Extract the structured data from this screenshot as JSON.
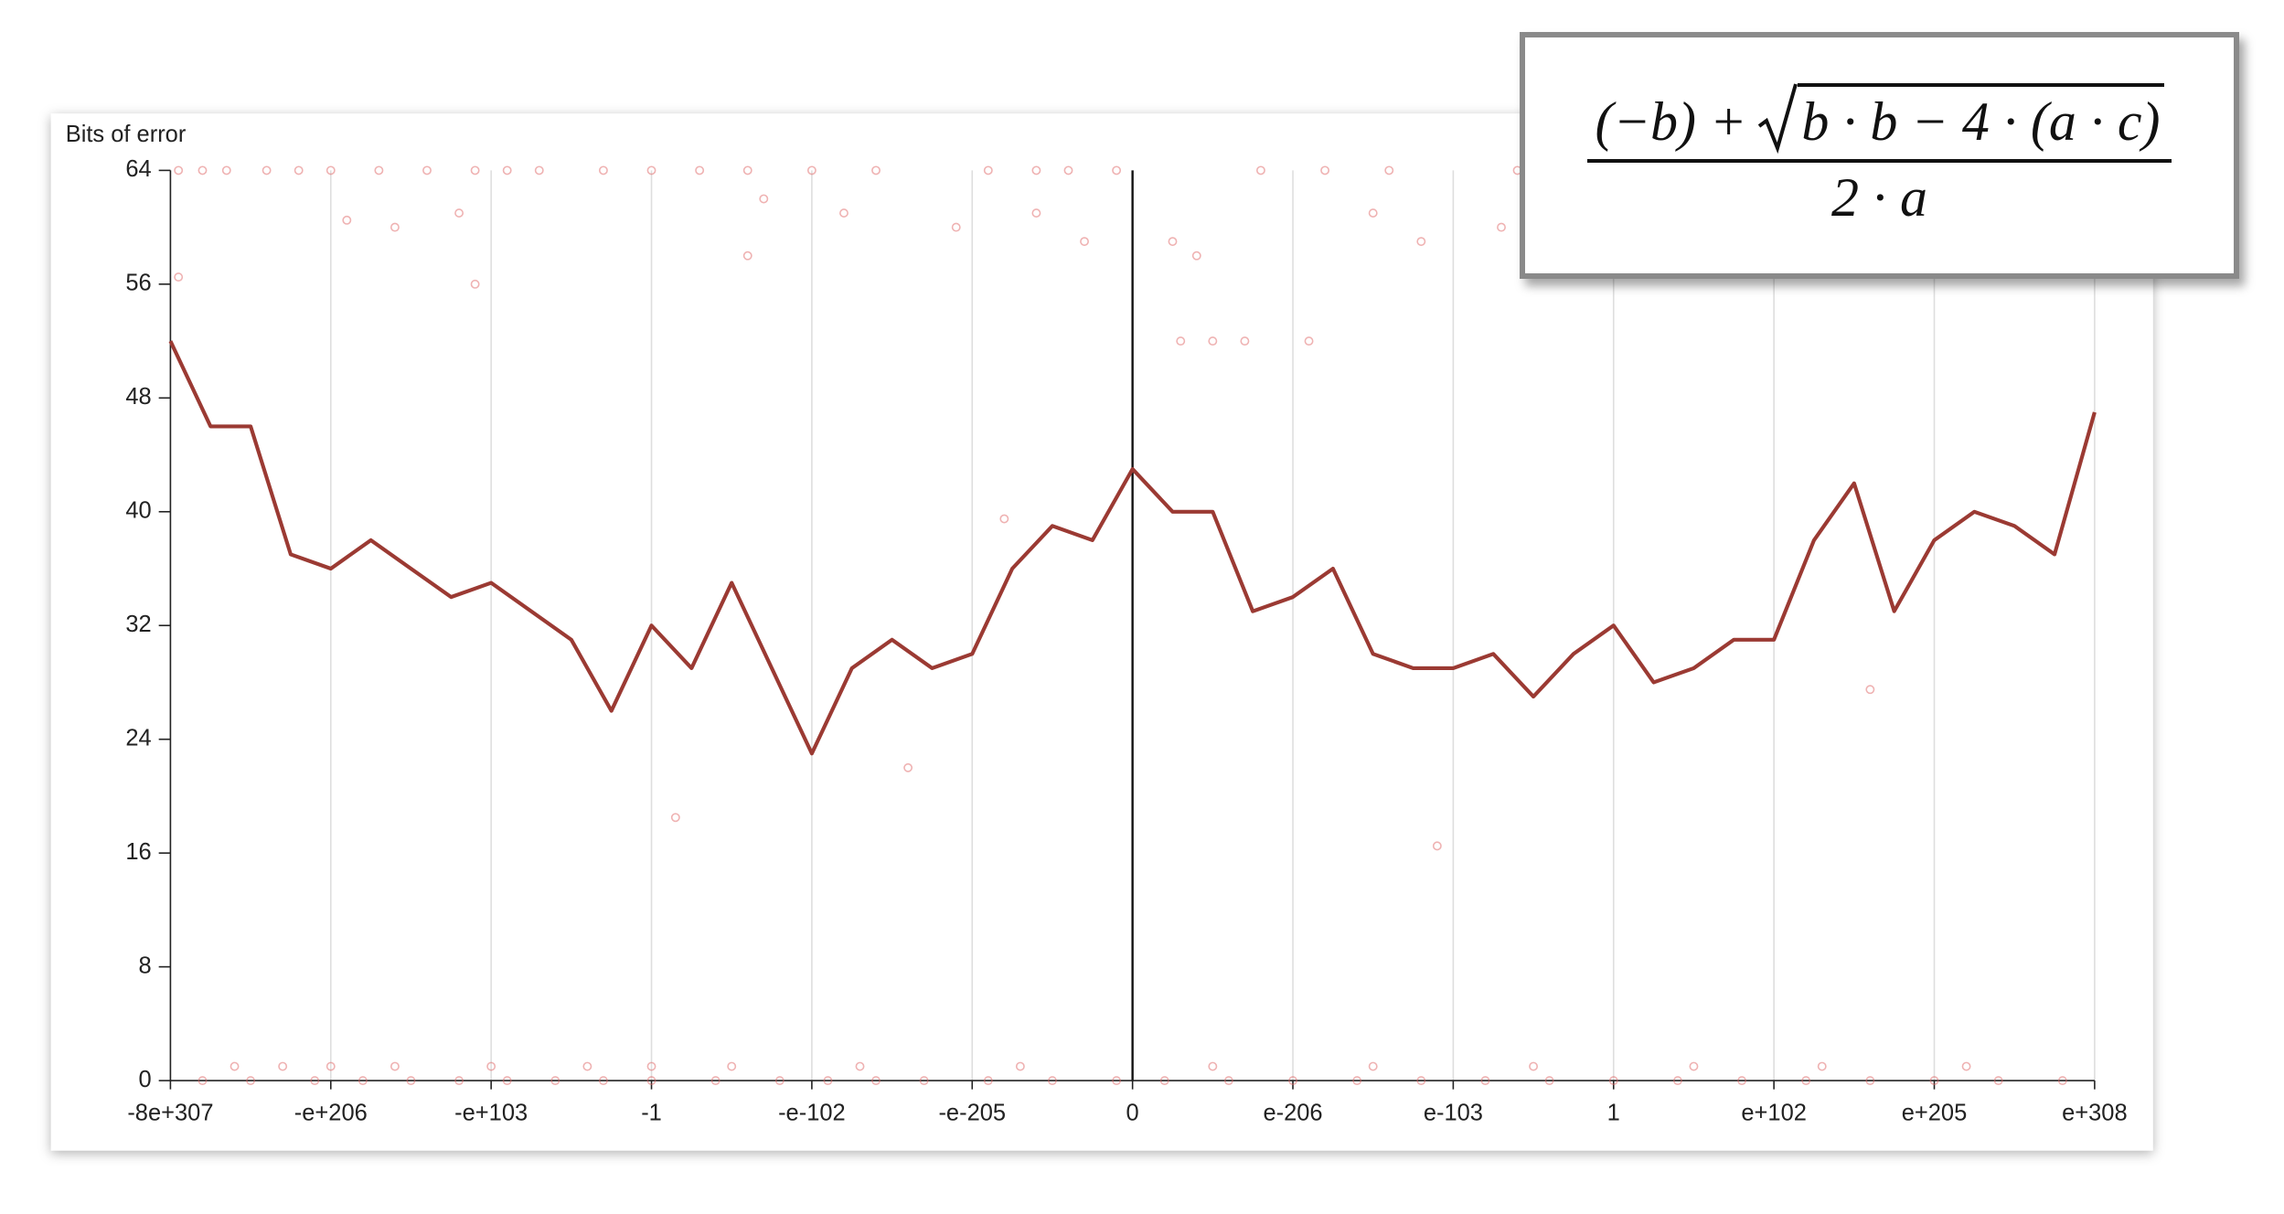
{
  "chart_data": {
    "type": "line",
    "ylabel": "Bits of error",
    "xlim": [
      0,
      12
    ],
    "ylim": [
      0,
      64
    ],
    "xticks": [
      {
        "value": 0,
        "label": "-8e+307"
      },
      {
        "value": 1,
        "label": "-e+206"
      },
      {
        "value": 2,
        "label": "-e+103"
      },
      {
        "value": 3,
        "label": "-1"
      },
      {
        "value": 4,
        "label": "-e-102"
      },
      {
        "value": 5,
        "label": "-e-205"
      },
      {
        "value": 6,
        "label": "0"
      },
      {
        "value": 7,
        "label": "e-206"
      },
      {
        "value": 8,
        "label": "e-103"
      },
      {
        "value": 9,
        "label": "1"
      },
      {
        "value": 10,
        "label": "e+102"
      },
      {
        "value": 11,
        "label": "e+205"
      },
      {
        "value": 12,
        "label": "e+308"
      }
    ],
    "yticks": [
      0,
      8,
      16,
      24,
      32,
      40,
      48,
      56,
      64
    ],
    "grid": true,
    "series": [
      {
        "type": "line",
        "color": "#9b3a33",
        "x": [
          0,
          0.25,
          0.5,
          0.75,
          1,
          1.25,
          1.5,
          1.75,
          2,
          2.25,
          2.5,
          2.75,
          3,
          3.25,
          3.5,
          3.75,
          4,
          4.25,
          4.5,
          4.75,
          5,
          5.25,
          5.5,
          5.75,
          6,
          6.25,
          6.5,
          6.75,
          7,
          7.25,
          7.5,
          7.75,
          8,
          8.25,
          8.5,
          8.75,
          9,
          9.25,
          9.5,
          9.75,
          10,
          10.25,
          10.5,
          10.75,
          11,
          11.25,
          11.5,
          11.75,
          12
        ],
        "values": [
          52,
          46,
          46,
          37,
          36,
          38,
          36,
          34,
          35,
          33,
          31,
          26,
          32,
          29,
          35,
          29,
          23,
          29,
          31,
          29,
          30,
          36,
          39,
          38,
          43,
          40,
          40,
          33,
          34,
          36,
          30,
          29,
          29,
          30,
          27,
          30,
          32,
          28,
          29,
          31,
          31,
          38,
          42,
          33,
          38,
          40,
          39,
          37,
          47
        ]
      },
      {
        "type": "scatter",
        "color": "#e06666",
        "x": [
          0.05,
          0.2,
          0.35,
          0.6,
          0.8,
          1.0,
          1.3,
          1.6,
          1.9,
          2.1,
          2.3,
          2.7,
          3.0,
          3.3,
          3.6,
          4.0,
          4.4,
          5.1,
          5.4,
          5.6,
          5.9,
          6.8,
          7.2,
          7.6,
          8.4,
          8.7,
          9.3,
          11.9,
          1.1,
          1.4,
          1.8,
          0.05,
          1.9,
          3.6,
          3.7,
          4.2,
          4.9,
          5.4,
          5.7,
          6.25,
          6.4,
          6.3,
          6.5,
          6.7,
          7.1,
          7.5,
          7.8,
          8.3,
          3.15,
          4.6,
          5.2,
          7.9,
          10.6,
          0.2,
          0.5,
          0.9,
          1.2,
          1.5,
          1.8,
          2.1,
          2.4,
          2.7,
          3.0,
          3.4,
          3.8,
          4.1,
          4.4,
          4.7,
          5.1,
          5.5,
          5.9,
          6.2,
          6.6,
          7.0,
          7.4,
          7.8,
          8.2,
          8.6,
          9.0,
          9.4,
          9.8,
          10.2,
          10.6,
          11.0,
          11.4,
          11.8,
          0.4,
          0.7,
          1.0,
          1.4,
          2.0,
          2.6,
          3.0,
          3.5,
          4.3,
          5.3,
          6.5,
          7.5,
          8.5,
          9.5,
          10.3,
          11.2
        ],
        "values": [
          64,
          64,
          64,
          64,
          64,
          64,
          64,
          64,
          64,
          64,
          64,
          64,
          64,
          64,
          64,
          64,
          64,
          64,
          64,
          64,
          64,
          64,
          64,
          64,
          64,
          64,
          64,
          64,
          60.5,
          60,
          61,
          56.5,
          56,
          58,
          62,
          61,
          60,
          61,
          59,
          59,
          58,
          52,
          52,
          52,
          52,
          61,
          59,
          60,
          18.5,
          22,
          39.5,
          16.5,
          27.5,
          0,
          0,
          0,
          0,
          0,
          0,
          0,
          0,
          0,
          0,
          0,
          0,
          0,
          0,
          0,
          0,
          0,
          0,
          0,
          0,
          0,
          0,
          0,
          0,
          0,
          0,
          0,
          0,
          0,
          0,
          0,
          0,
          0,
          1,
          1,
          1,
          1,
          1,
          1,
          1,
          1,
          1,
          1,
          1,
          1,
          1,
          1,
          1,
          1
        ]
      }
    ]
  },
  "formula": {
    "numerator_left": "(−b) +",
    "radicand": "b · b − 4 · (a · c)",
    "denominator": "2 · a"
  }
}
